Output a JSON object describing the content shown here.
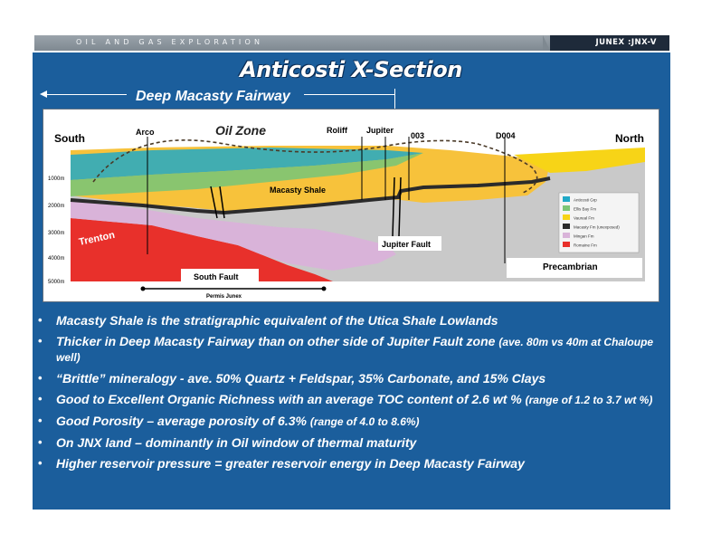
{
  "header": {
    "section_label": "OIL AND GAS EXPLORATION",
    "company_tag": "JUNEX :JNX-V"
  },
  "slide": {
    "title": "Anticosti X-Section"
  },
  "figure": {
    "fairway_label": "Deep Macasty Fairway",
    "oil_zone_label": "Oil Zone",
    "direction_south": "South",
    "direction_north": "North",
    "wells": [
      "Arco",
      "Roliff",
      "Jupiter",
      "003",
      "D004"
    ],
    "depth_ticks": [
      "1000m",
      "2000m",
      "3000m",
      "4000m",
      "5000m"
    ],
    "annotations": {
      "macasty_shale": "Macasty Shale",
      "trenton": "Trenton",
      "jupiter_fault": "Jupiter Fault",
      "south_fault": "South Fault",
      "precambrian": "Precambrian",
      "permis": "Permis Junex"
    },
    "legend": [
      {
        "label": "Anticosti Grp",
        "color": "#21a9c7"
      },
      {
        "label": "Ellis Bay Fm",
        "color": "#7cc576"
      },
      {
        "label": "Vaureal Fm",
        "color": "#f7d417"
      },
      {
        "label": "Macasty Fm (unexposed)",
        "color": "#2b2b2b"
      },
      {
        "label": "Mingan Fm",
        "color": "#d9b3d9"
      },
      {
        "label": "Romaine Fm",
        "color": "#e8302b"
      }
    ]
  },
  "bullets": [
    {
      "main": "Macasty Shale is the stratigraphic equivalent of the Utica Shale Lowlands",
      "note": ""
    },
    {
      "main": "Thicker in Deep Macasty Fairway than on other side of Jupiter Fault zone",
      "note": "(ave. 80m vs 40m at Chaloupe well)"
    },
    {
      "main": "“Brittle” mineralogy - ave. 50% Quartz + Feldspar, 35% Carbonate, and 15% Clays",
      "note": ""
    },
    {
      "main": "Good to Excellent Organic Richness with an average TOC content of 2.6 wt %",
      "note": "(range of 1.2 to 3.7 wt %)"
    },
    {
      "main": "Good Porosity – average porosity of 6.3%",
      "note": "(range of 4.0 to 8.6%)"
    },
    {
      "main": "On JNX land – dominantly in Oil window of thermal maturity",
      "note": ""
    },
    {
      "main": "Higher reservoir pressure = greater reservoir energy in Deep Macasty Fairway",
      "note": ""
    }
  ]
}
